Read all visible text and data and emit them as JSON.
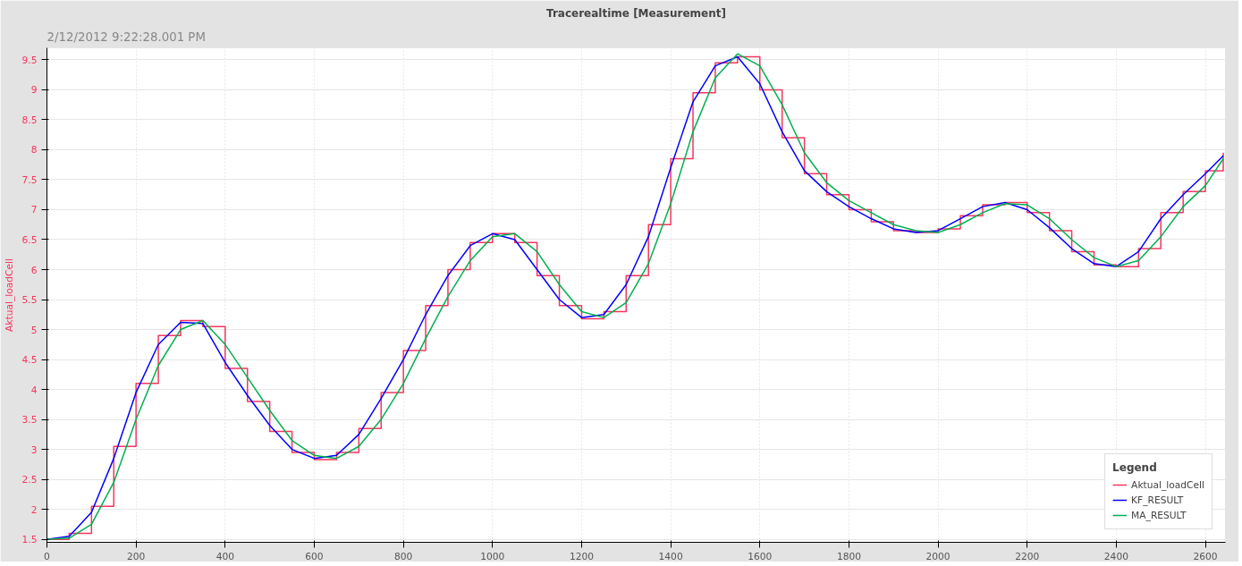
{
  "chart_data": {
    "type": "line",
    "title": "Tracerealtime [Measurement]",
    "subtitle": "2/12/2012  9:22:28.001 PM",
    "ylabel": "Aktual_loadCell",
    "legend_title": "Legend",
    "x": [
      0,
      50,
      100,
      150,
      200,
      250,
      300,
      350,
      400,
      450,
      500,
      550,
      600,
      650,
      700,
      750,
      800,
      850,
      900,
      950,
      1000,
      1050,
      1100,
      1150,
      1200,
      1250,
      1300,
      1350,
      1400,
      1450,
      1500,
      1550,
      1600,
      1650,
      1700,
      1750,
      1800,
      1850,
      1900,
      1950,
      2000,
      2050,
      2100,
      2150,
      2200,
      2250,
      2300,
      2350,
      2400,
      2450,
      2500,
      2550,
      2600,
      2640
    ],
    "series": [
      {
        "name": "Aktual_loadCell",
        "type": "step",
        "color": "#f7355c",
        "values": [
          1.5,
          1.6,
          2.05,
          3.05,
          4.1,
          4.9,
          5.15,
          5.05,
          4.35,
          3.8,
          3.3,
          2.95,
          2.83,
          2.95,
          3.35,
          3.95,
          4.65,
          5.4,
          6.0,
          6.45,
          6.6,
          6.45,
          5.9,
          5.4,
          5.18,
          5.3,
          5.9,
          6.75,
          7.85,
          8.95,
          9.45,
          9.55,
          9.0,
          8.2,
          7.6,
          7.25,
          7.0,
          6.8,
          6.65,
          6.62,
          6.68,
          6.9,
          7.08,
          7.12,
          6.95,
          6.65,
          6.3,
          6.08,
          6.05,
          6.35,
          6.95,
          7.3,
          7.65,
          7.95
        ]
      },
      {
        "name": "KF_RESULT",
        "color": "#0000ff",
        "values": [
          1.5,
          1.55,
          1.95,
          2.85,
          3.95,
          4.75,
          5.12,
          5.1,
          4.45,
          3.9,
          3.4,
          3.0,
          2.85,
          2.9,
          3.25,
          3.85,
          4.5,
          5.25,
          5.9,
          6.4,
          6.6,
          6.5,
          6.0,
          5.5,
          5.2,
          5.25,
          5.75,
          6.55,
          7.7,
          8.8,
          9.4,
          9.55,
          9.1,
          8.3,
          7.65,
          7.3,
          7.05,
          6.85,
          6.68,
          6.62,
          6.65,
          6.85,
          7.05,
          7.12,
          7.0,
          6.7,
          6.35,
          6.1,
          6.05,
          6.3,
          6.85,
          7.25,
          7.6,
          7.9
        ]
      },
      {
        "name": "MA_RESULT",
        "color": "#00b050",
        "values": [
          1.5,
          1.52,
          1.75,
          2.45,
          3.5,
          4.4,
          5.0,
          5.15,
          4.75,
          4.2,
          3.65,
          3.15,
          2.9,
          2.85,
          3.05,
          3.5,
          4.1,
          4.85,
          5.55,
          6.15,
          6.55,
          6.6,
          6.3,
          5.75,
          5.3,
          5.2,
          5.45,
          6.1,
          7.1,
          8.3,
          9.2,
          9.6,
          9.4,
          8.75,
          7.95,
          7.45,
          7.15,
          6.95,
          6.75,
          6.65,
          6.62,
          6.75,
          6.95,
          7.1,
          7.08,
          6.85,
          6.5,
          6.2,
          6.05,
          6.15,
          6.55,
          7.05,
          7.4,
          7.85
        ]
      }
    ],
    "xlim": [
      0,
      2645
    ],
    "ylim": [
      1.45,
      9.7
    ],
    "xticks": [
      0,
      200,
      400,
      600,
      800,
      1000,
      1200,
      1400,
      1600,
      1800,
      2000,
      2200,
      2400,
      2600
    ],
    "yticks": [
      1.5,
      2,
      2.5,
      3,
      3.5,
      4,
      4.5,
      5,
      5.5,
      6,
      6.5,
      7,
      7.5,
      8,
      8.5,
      9,
      9.5
    ],
    "grid": true,
    "legend": "bottom right",
    "marker": "none",
    "line_style": "solid"
  }
}
